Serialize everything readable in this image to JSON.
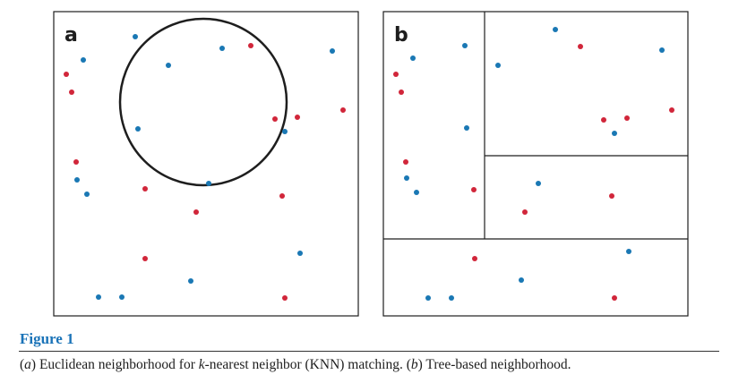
{
  "figure": {
    "title": "Figure 1",
    "caption": {
      "segments": [
        {
          "text": "(",
          "italic": false
        },
        {
          "text": "a",
          "italic": true
        },
        {
          "text": ") Euclidean neighborhood for ",
          "italic": false
        },
        {
          "text": "k",
          "italic": true
        },
        {
          "text": "-nearest neighbor (KNN) matching. (",
          "italic": false
        },
        {
          "text": "b",
          "italic": true
        },
        {
          "text": ") Tree-based neighborhood.",
          "italic": false
        }
      ]
    },
    "colors": {
      "blue": "#1a78b4",
      "red": "#d1263a",
      "line": "#1e1e1e"
    }
  },
  "chart_data": [
    {
      "type": "scatter",
      "panel_label": "a",
      "title": "",
      "xlabel": "",
      "ylabel": "",
      "xlim": [
        0,
        340
      ],
      "ylim": [
        0,
        340
      ],
      "grid": false,
      "series": [
        {
          "color": "blue",
          "points": [
            [
              91,
              312
            ],
            [
              188,
              299
            ],
            [
              33,
              286
            ],
            [
              128,
              280
            ],
            [
              311,
              296
            ],
            [
              94,
              209
            ],
            [
              258,
              206
            ],
            [
              26,
              152
            ],
            [
              37,
              136
            ],
            [
              173,
              148
            ],
            [
              275,
              70
            ],
            [
              153,
              39
            ],
            [
              50,
              21
            ],
            [
              76,
              21
            ]
          ]
        },
        {
          "color": "red",
          "points": [
            [
              220,
              302
            ],
            [
              14,
              270
            ],
            [
              20,
              250
            ],
            [
              247,
              220
            ],
            [
              272,
              222
            ],
            [
              323,
              230
            ],
            [
              25,
              172
            ],
            [
              102,
              142
            ],
            [
              255,
              134
            ],
            [
              159,
              116
            ],
            [
              102,
              64
            ],
            [
              258,
              20
            ]
          ]
        }
      ],
      "circle": {
        "cx": 167,
        "cy": 239,
        "r": 93
      }
    },
    {
      "type": "scatter",
      "panel_label": "b",
      "title": "",
      "xlabel": "",
      "ylabel": "",
      "xlim": [
        0,
        340
      ],
      "ylim": [
        0,
        340
      ],
      "grid": false,
      "series": [
        {
          "color": "blue",
          "points": [
            [
              91,
              302
            ],
            [
              192,
              320
            ],
            [
              33,
              288
            ],
            [
              128,
              280
            ],
            [
              311,
              297
            ],
            [
              93,
              210
            ],
            [
              258,
              204
            ],
            [
              26,
              154
            ],
            [
              37,
              138
            ],
            [
              173,
              148
            ],
            [
              274,
              72
            ],
            [
              154,
              40
            ],
            [
              50,
              20
            ],
            [
              76,
              20
            ]
          ]
        },
        {
          "color": "red",
          "points": [
            [
              220,
              301
            ],
            [
              14,
              270
            ],
            [
              20,
              250
            ],
            [
              246,
              219
            ],
            [
              272,
              221
            ],
            [
              322,
              230
            ],
            [
              25,
              172
            ],
            [
              101,
              141
            ],
            [
              255,
              134
            ],
            [
              158,
              116
            ],
            [
              102,
              64
            ],
            [
              258,
              20
            ]
          ]
        }
      ],
      "partitions": [
        {
          "axis": "y",
          "value": 86,
          "from": 0,
          "to": 340
        },
        {
          "axis": "x",
          "value": 113,
          "from": 86,
          "to": 340
        },
        {
          "axis": "y",
          "value": 179,
          "from": 113,
          "to": 340
        }
      ]
    }
  ]
}
